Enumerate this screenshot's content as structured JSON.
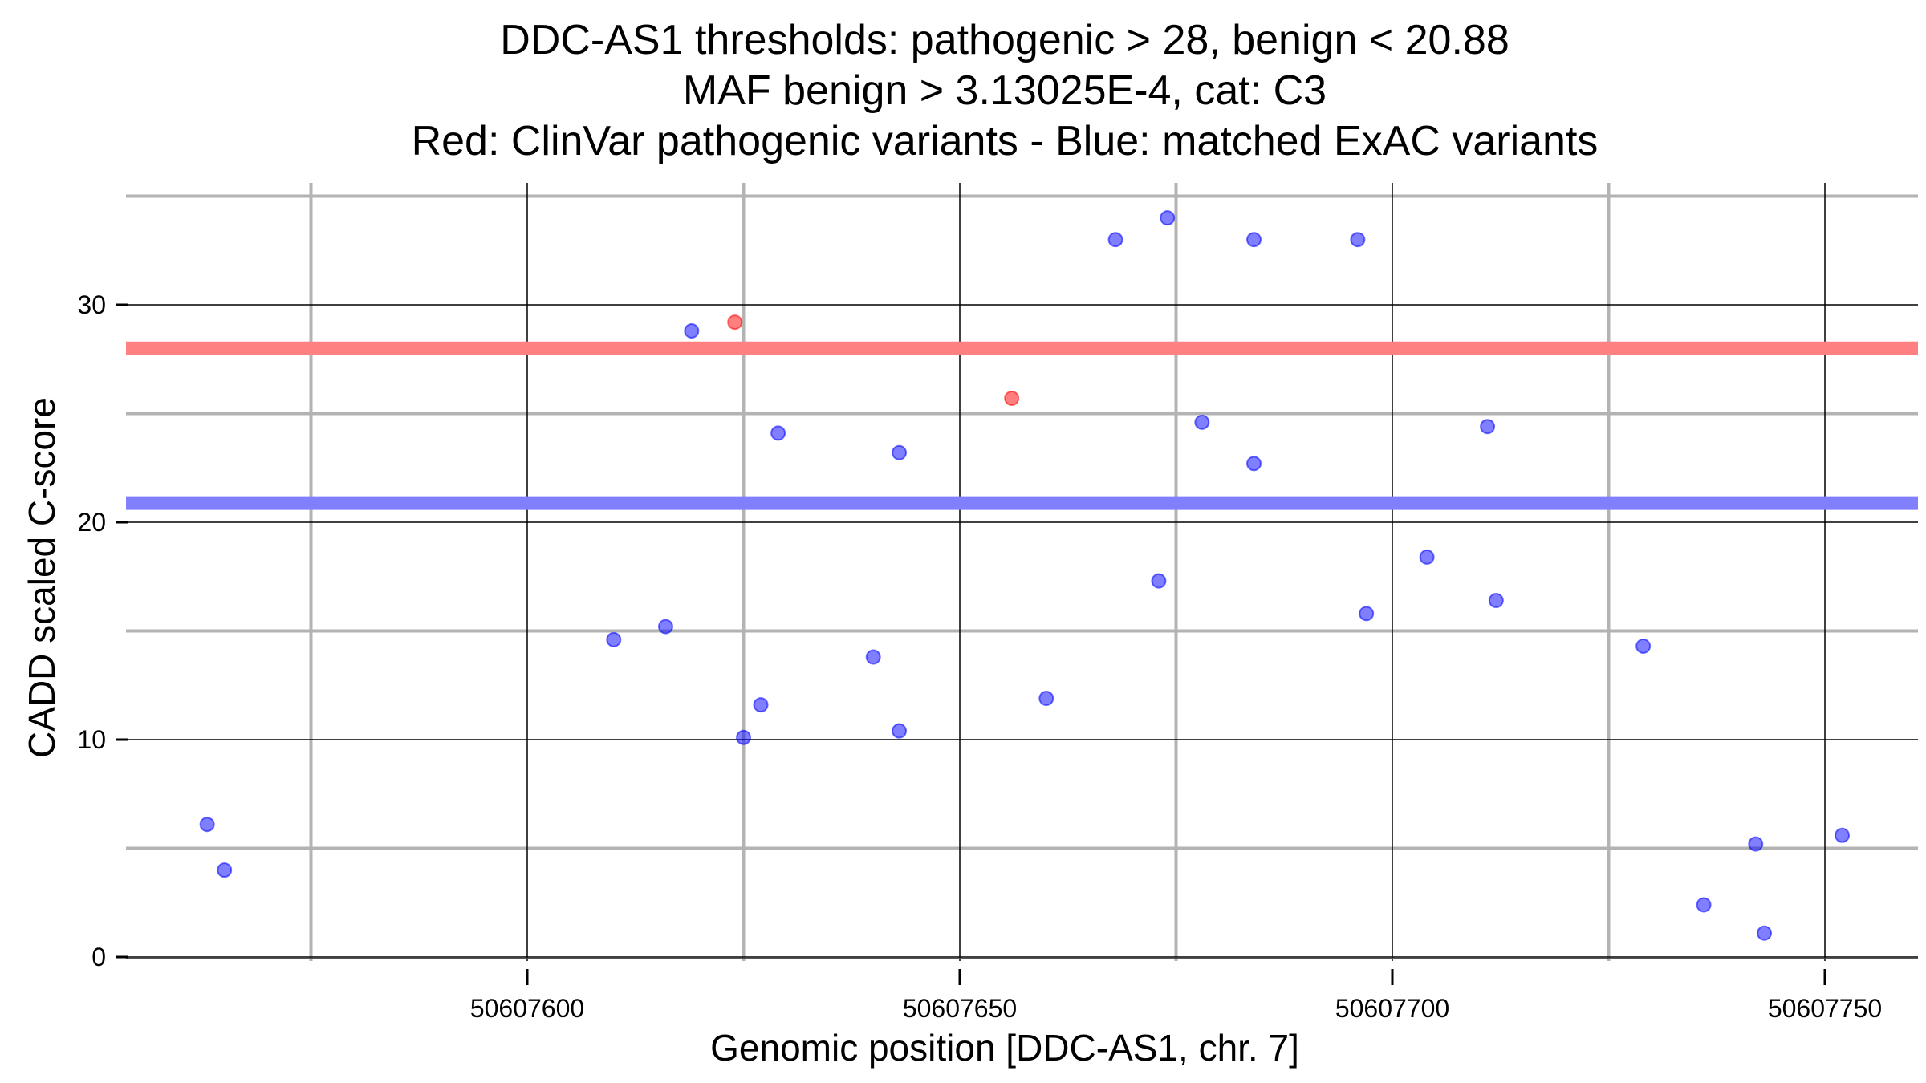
{
  "chart_data": {
    "type": "scatter",
    "title": [
      "DDC-AS1 thresholds: pathogenic > 28, benign < 20.88",
      "MAF benign > 3.13025E-4, cat: C3",
      "Red: ClinVar pathogenic variants - Blue: matched ExAC variants"
    ],
    "xlabel": "Genomic position [DDC-AS1, chr. 7]",
    "ylabel": "CADD scaled C-score",
    "xlim": [
      50607542,
      50607760
    ],
    "ylim": [
      -1,
      36
    ],
    "x_ticks": [
      50607600,
      50607650,
      50607700,
      50607750
    ],
    "x_tick_labels": [
      "50607600",
      "50607650",
      "50607700",
      "50607750"
    ],
    "x_minor_gridlines": [
      50607575,
      50607625,
      50607675,
      50607725
    ],
    "y_ticks": [
      0,
      10,
      20,
      30
    ],
    "y_tick_labels": [
      "0",
      "10",
      "20",
      "30"
    ],
    "y_minor_gridlines": [
      5,
      15,
      25,
      35
    ],
    "grid": true,
    "thresholds": [
      {
        "name": "pathogenic",
        "value": 28,
        "color": "#ff8080"
      },
      {
        "name": "benign",
        "value": 20.88,
        "color": "#8080ff"
      }
    ],
    "series": [
      {
        "name": "ClinVar pathogenic variants",
        "color": "#ff0000",
        "points": [
          {
            "x": 50607624,
            "y": 29.2
          },
          {
            "x": 50607656,
            "y": 25.7
          }
        ]
      },
      {
        "name": "matched ExAC variants",
        "color": "#0000ff",
        "points": [
          {
            "x": 50607563,
            "y": 6.1
          },
          {
            "x": 50607565,
            "y": 4.0
          },
          {
            "x": 50607610,
            "y": 14.6
          },
          {
            "x": 50607616,
            "y": 15.2
          },
          {
            "x": 50607619,
            "y": 28.8
          },
          {
            "x": 50607625,
            "y": 10.1
          },
          {
            "x": 50607627,
            "y": 11.6
          },
          {
            "x": 50607629,
            "y": 24.1
          },
          {
            "x": 50607640,
            "y": 13.8
          },
          {
            "x": 50607643,
            "y": 23.2
          },
          {
            "x": 50607643,
            "y": 10.4
          },
          {
            "x": 50607660,
            "y": 11.9
          },
          {
            "x": 50607668,
            "y": 33.0
          },
          {
            "x": 50607673,
            "y": 17.3
          },
          {
            "x": 50607674,
            "y": 34.0
          },
          {
            "x": 50607678,
            "y": 24.6
          },
          {
            "x": 50607684,
            "y": 33.0
          },
          {
            "x": 50607684,
            "y": 22.7
          },
          {
            "x": 50607696,
            "y": 33.0
          },
          {
            "x": 50607697,
            "y": 15.8
          },
          {
            "x": 50607704,
            "y": 18.4
          },
          {
            "x": 50607711,
            "y": 24.4
          },
          {
            "x": 50607712,
            "y": 16.4
          },
          {
            "x": 50607729,
            "y": 14.3
          },
          {
            "x": 50607736,
            "y": 2.4
          },
          {
            "x": 50607742,
            "y": 5.2
          },
          {
            "x": 50607743,
            "y": 1.1
          },
          {
            "x": 50607752,
            "y": 5.6
          }
        ]
      }
    ]
  }
}
